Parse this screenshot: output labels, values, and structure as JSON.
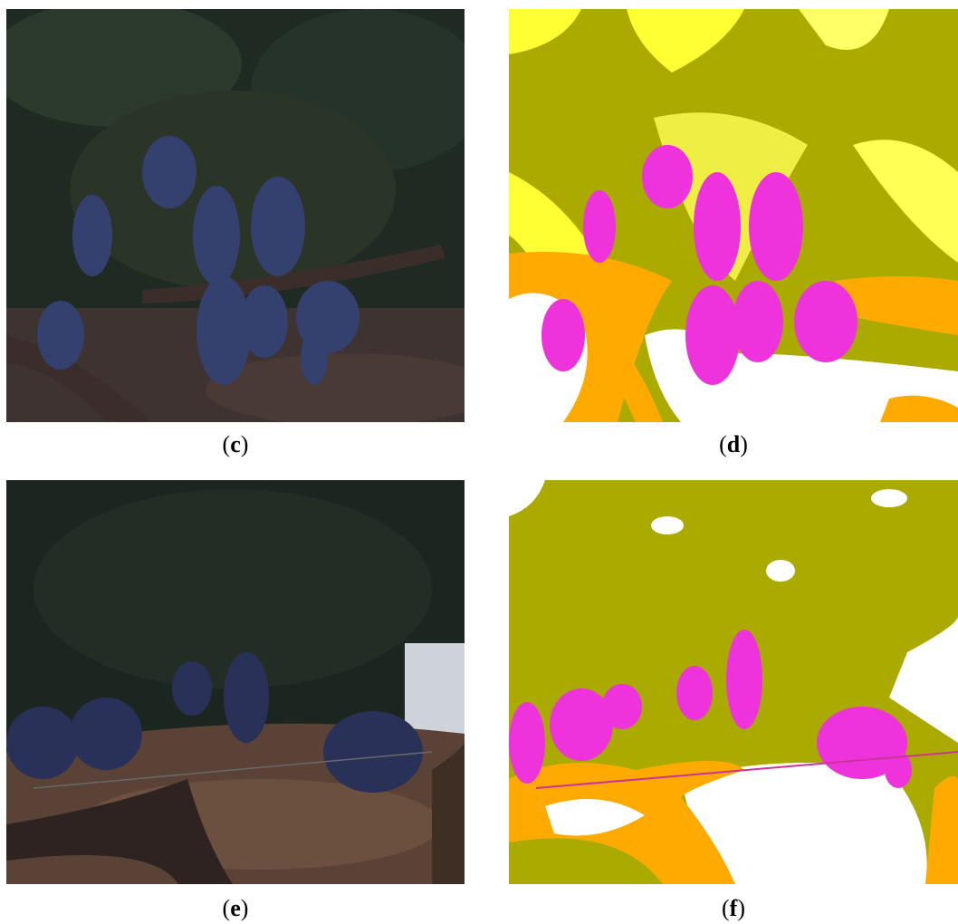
{
  "panels": [
    {
      "label": "(c)"
    },
    {
      "label": "(d)"
    },
    {
      "label": "(e)"
    },
    {
      "label": "(f)"
    }
  ]
}
